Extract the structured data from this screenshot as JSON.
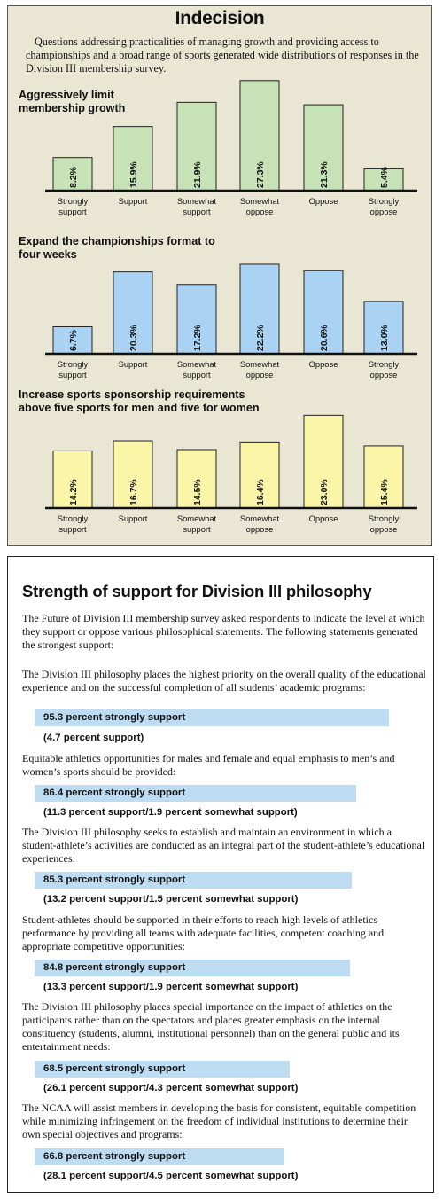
{
  "panel1": {
    "title": "Indecision",
    "intro": "Questions addressing practicalities of managing growth and providing access to championships and a broad range of sports generated wide distributions of responses in the Division III membership survey.",
    "colors": {
      "green": "#c6e2b6",
      "blue": "#aad3f3",
      "yellow": "#fbf5a8",
      "background": "#e9e6d4"
    }
  },
  "chart_data": [
    {
      "type": "bar",
      "title": "Aggressively limit membership growth",
      "title_lines": [
        "Aggressively limit",
        "membership growth"
      ],
      "categories": [
        "Strongly support",
        "Support",
        "Somewhat support",
        "Somewhat oppose",
        "Oppose",
        "Strongly oppose"
      ],
      "category_lines": [
        [
          "Strongly",
          "support"
        ],
        [
          "Support"
        ],
        [
          "Somewhat",
          "support"
        ],
        [
          "Somewhat",
          "oppose"
        ],
        [
          "Oppose"
        ],
        [
          "Strongly",
          "oppose"
        ]
      ],
      "values": [
        8.2,
        15.9,
        21.9,
        27.3,
        21.3,
        5.4
      ],
      "labels": [
        "8.2%",
        "15.9%",
        "21.9%",
        "27.3%",
        "21.3%",
        "5.4%"
      ],
      "color": "#c6e2b6"
    },
    {
      "type": "bar",
      "title": "Expand the championships format to four weeks",
      "title_lines": [
        "Expand the championships format to",
        "four weeks"
      ],
      "categories": [
        "Strongly support",
        "Support",
        "Somewhat support",
        "Somewhat oppose",
        "Oppose",
        "Strongly oppose"
      ],
      "category_lines": [
        [
          "Strongly",
          "support"
        ],
        [
          "Support"
        ],
        [
          "Somewhat",
          "support"
        ],
        [
          "Somewhat",
          "oppose"
        ],
        [
          "Oppose"
        ],
        [
          "Strongly",
          "oppose"
        ]
      ],
      "values": [
        6.7,
        20.3,
        17.2,
        22.2,
        20.6,
        13.0
      ],
      "labels": [
        "6.7%",
        "20.3%",
        "17.2%",
        "22.2%",
        "20.6%",
        "13.0%"
      ],
      "color": "#aad3f3"
    },
    {
      "type": "bar",
      "title": "Increase sports sponsorship requirements above five sports for men and five for women",
      "title_lines": [
        "Increase sports sponsorship requirements",
        "above five sports for men and five for women"
      ],
      "categories": [
        "Strongly support",
        "Support",
        "Somewhat support",
        "Somewhat oppose",
        "Oppose",
        "Strongly oppose"
      ],
      "category_lines": [
        [
          "Strongly",
          "support"
        ],
        [
          "Support"
        ],
        [
          "Somewhat",
          "support"
        ],
        [
          "Somewhat",
          "oppose"
        ],
        [
          "Oppose"
        ],
        [
          "Strongly",
          "oppose"
        ]
      ],
      "values": [
        14.2,
        16.7,
        14.5,
        16.4,
        23.0,
        15.4
      ],
      "labels": [
        "14.2%",
        "16.7%",
        "14.5%",
        "16.4%",
        "23.0%",
        "15.4%"
      ],
      "color": "#fbf5a8"
    }
  ],
  "panel2": {
    "title": "Strength of support for Division III philosophy",
    "intro": "The Future of Division III membership survey asked respondents to indicate the level at which they support or oppose various philosophical statements. The following statements generated the strongest support:",
    "bar_color": "#bddcf2",
    "items": [
      {
        "statement": "The Division III philosophy places the highest priority on the overall quality of the educational experience and on the successful completion of all students’ academic programs:",
        "value": 95.3,
        "bar_label": "95.3 percent strongly support",
        "sub": "(4.7 percent support)"
      },
      {
        "statement": "Equitable athletics opportunities for males and female and equal emphasis to men’s and women’s sports should be provided:",
        "value": 86.4,
        "bar_label": "86.4 percent strongly support",
        "sub": "(11.3 percent support/1.9 percent somewhat support)"
      },
      {
        "statement": "The Division III philosophy seeks to establish and maintain an environment in which a student-athlete’s activities are conducted as an integral part of the student-athlete’s educational experiences:",
        "value": 85.3,
        "bar_label": "85.3 percent strongly support",
        "sub": "(13.2 percent support/1.5 percent somewhat support)"
      },
      {
        "statement": "Student-athletes should be supported in their efforts to reach high levels of athletics performance by providing all teams with adequate facilities, competent coaching and appropriate competitive opportunities:",
        "value": 84.8,
        "bar_label": "84.8 percent strongly support",
        "sub": "(13.3 percent support/1.9 percent somewhat support)"
      },
      {
        "statement": "The Division III philosophy places special importance on the impact of athletics on the participants rather than on the spectators and places greater emphasis on the internal constituency (students, alumni, institutional personnel) than on the general public and its entertainment needs:",
        "value": 68.5,
        "bar_label": "68.5 percent strongly support",
        "sub": "(26.1 percent support/4.3 percent somewhat support)"
      },
      {
        "statement": "The NCAA will assist members in developing the basis for consistent, equitable competition while minimizing infringement on the freedom of individual institutions to determine their own special objectives and programs:",
        "value": 66.8,
        "bar_label": "66.8 percent strongly support",
        "sub": "(28.1 percent support/4.5 percent somewhat support)"
      }
    ]
  }
}
